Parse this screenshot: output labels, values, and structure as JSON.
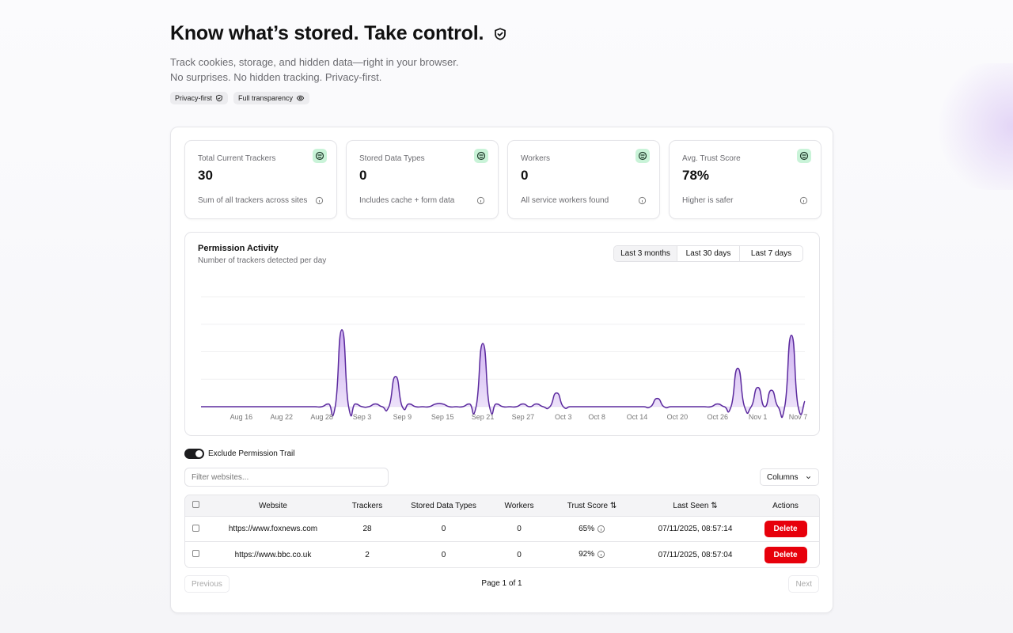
{
  "hero": {
    "title": "Know what’s stored. Take control.",
    "line1": "Track cookies, storage, and hidden data—right in your browser.",
    "line2": "No surprises. No hidden tracking. Privacy-first.",
    "badges": [
      {
        "label": "Privacy-first",
        "icon": "shield-check-icon"
      },
      {
        "label": "Full transparency",
        "icon": "eye-icon"
      }
    ]
  },
  "stats": [
    {
      "label": "Total Current Trackers",
      "value": "30",
      "note": "Sum of all trackers across sites"
    },
    {
      "label": "Stored Data Types",
      "value": "0",
      "note": "Includes cache + form data"
    },
    {
      "label": "Workers",
      "value": "0",
      "note": "All service workers found"
    },
    {
      "label": "Avg. Trust Score",
      "value": "78%",
      "note": "Higher is safer"
    }
  ],
  "colors": {
    "accent": "#5b2a9e",
    "fill": "#c9a8ef",
    "status_icon_bg": "#c9f3d8",
    "danger": "#e7000b"
  },
  "chart": {
    "title": "Permission Activity",
    "subtitle": "Number of trackers detected per day",
    "ranges": [
      "Last 3 months",
      "Last 30 days",
      "Last 7 days"
    ],
    "selected_range": "Last 3 months"
  },
  "chart_data": {
    "type": "area",
    "title": "Permission Activity",
    "xlabel": "",
    "ylabel": "",
    "xlim": [
      "2025-08-10",
      "2025-11-08"
    ],
    "ylim": [
      0,
      40
    ],
    "grid": true,
    "x_ticks": [
      "Aug 16",
      "Aug 22",
      "Aug 28",
      "Sep 3",
      "Sep 9",
      "Sep 15",
      "Sep 21",
      "Sep 27",
      "Oct 3",
      "Oct 8",
      "Oct 14",
      "Oct 20",
      "Oct 26",
      "Nov 1",
      "Nov 7"
    ],
    "points": [
      {
        "x": "2025-08-29",
        "y": 1
      },
      {
        "x": "2025-08-31",
        "y": 28
      },
      {
        "x": "2025-09-02",
        "y": 1
      },
      {
        "x": "2025-09-05",
        "y": 1
      },
      {
        "x": "2025-09-08",
        "y": 11
      },
      {
        "x": "2025-09-10",
        "y": 1
      },
      {
        "x": "2025-09-14",
        "y": 1
      },
      {
        "x": "2025-09-15",
        "y": 1
      },
      {
        "x": "2025-09-19",
        "y": 1
      },
      {
        "x": "2025-09-21",
        "y": 23
      },
      {
        "x": "2025-09-23",
        "y": 1
      },
      {
        "x": "2025-09-27",
        "y": 1
      },
      {
        "x": "2025-09-29",
        "y": 1
      },
      {
        "x": "2025-10-02",
        "y": 5
      },
      {
        "x": "2025-10-17",
        "y": 3
      },
      {
        "x": "2025-10-26",
        "y": 1
      },
      {
        "x": "2025-10-29",
        "y": 14
      },
      {
        "x": "2025-11-01",
        "y": 7
      },
      {
        "x": "2025-11-03",
        "y": 6
      },
      {
        "x": "2025-11-06",
        "y": 26
      },
      {
        "x": "2025-11-08",
        "y": 2
      }
    ]
  },
  "controls": {
    "toggle_label": "Exclude Permission Trail",
    "toggle_on": true,
    "filter_placeholder": "Filter websites...",
    "filter_value": "",
    "columns_label": "Columns"
  },
  "table": {
    "headers": [
      "Website",
      "Trackers",
      "Stored Data Types",
      "Workers",
      "Trust Score",
      "Last Seen",
      "Actions"
    ],
    "rows": [
      {
        "website": "https://www.foxnews.com",
        "trackers": "28",
        "stored": "0",
        "workers": "0",
        "trust": "65%",
        "last_seen": "07/11/2025, 08:57:14",
        "action": "Delete"
      },
      {
        "website": "https://www.bbc.co.uk",
        "trackers": "2",
        "stored": "0",
        "workers": "0",
        "trust": "92%",
        "last_seen": "07/11/2025, 08:57:04",
        "action": "Delete"
      }
    ]
  },
  "pagination": {
    "previous": "Previous",
    "info": "Page 1 of 1",
    "next": "Next"
  }
}
